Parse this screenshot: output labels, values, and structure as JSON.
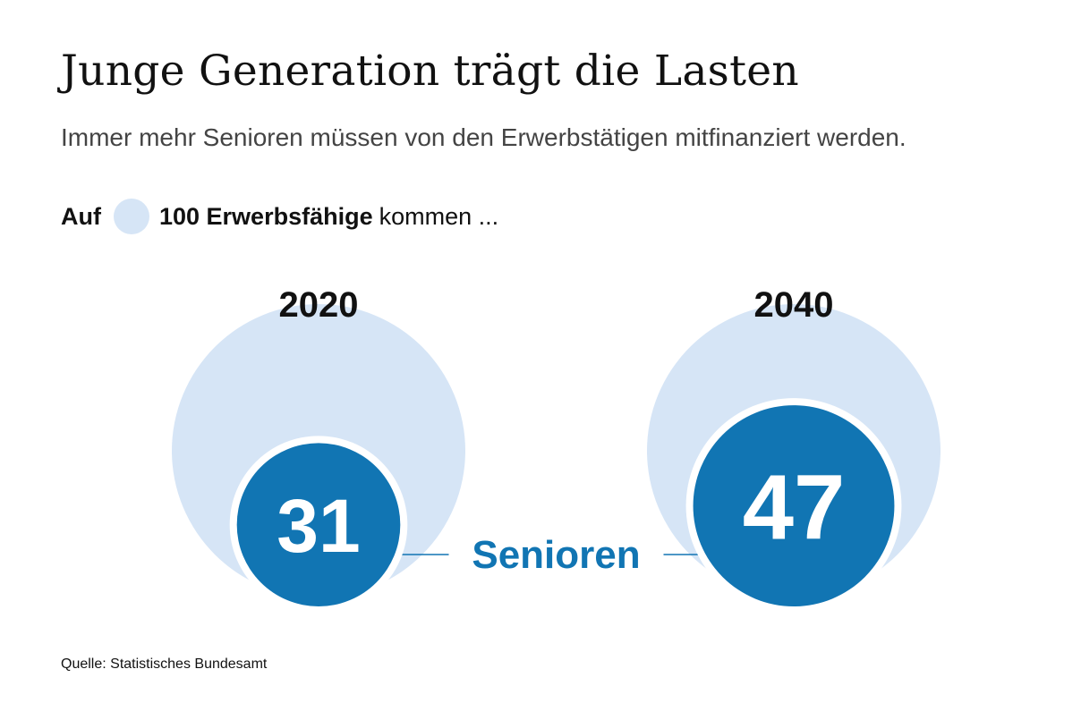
{
  "title": "Junge Generation trägt die Lasten",
  "subtitle": "Immer mehr Senioren müssen von den Erwerbstätigen mitfinanziert werden.",
  "legend": {
    "prefix": "Auf",
    "label_bold": "100 Erwerbsfähige",
    "label_rest": "kommen ..."
  },
  "colors": {
    "base_circle": "#d6e5f6",
    "value_circle": "#1175b3",
    "value_text": "#ffffff",
    "label_text": "#1175b3",
    "year_text": "#111111"
  },
  "chart_data": {
    "type": "bubble",
    "base_value": 100,
    "base_label": "100 Erwerbsfähige",
    "series_label": "Senioren",
    "categories": [
      "2020",
      "2040"
    ],
    "values": [
      31,
      47
    ],
    "value_labels": [
      "31",
      "47"
    ]
  },
  "source": "Quelle: Statistisches Bundesamt"
}
